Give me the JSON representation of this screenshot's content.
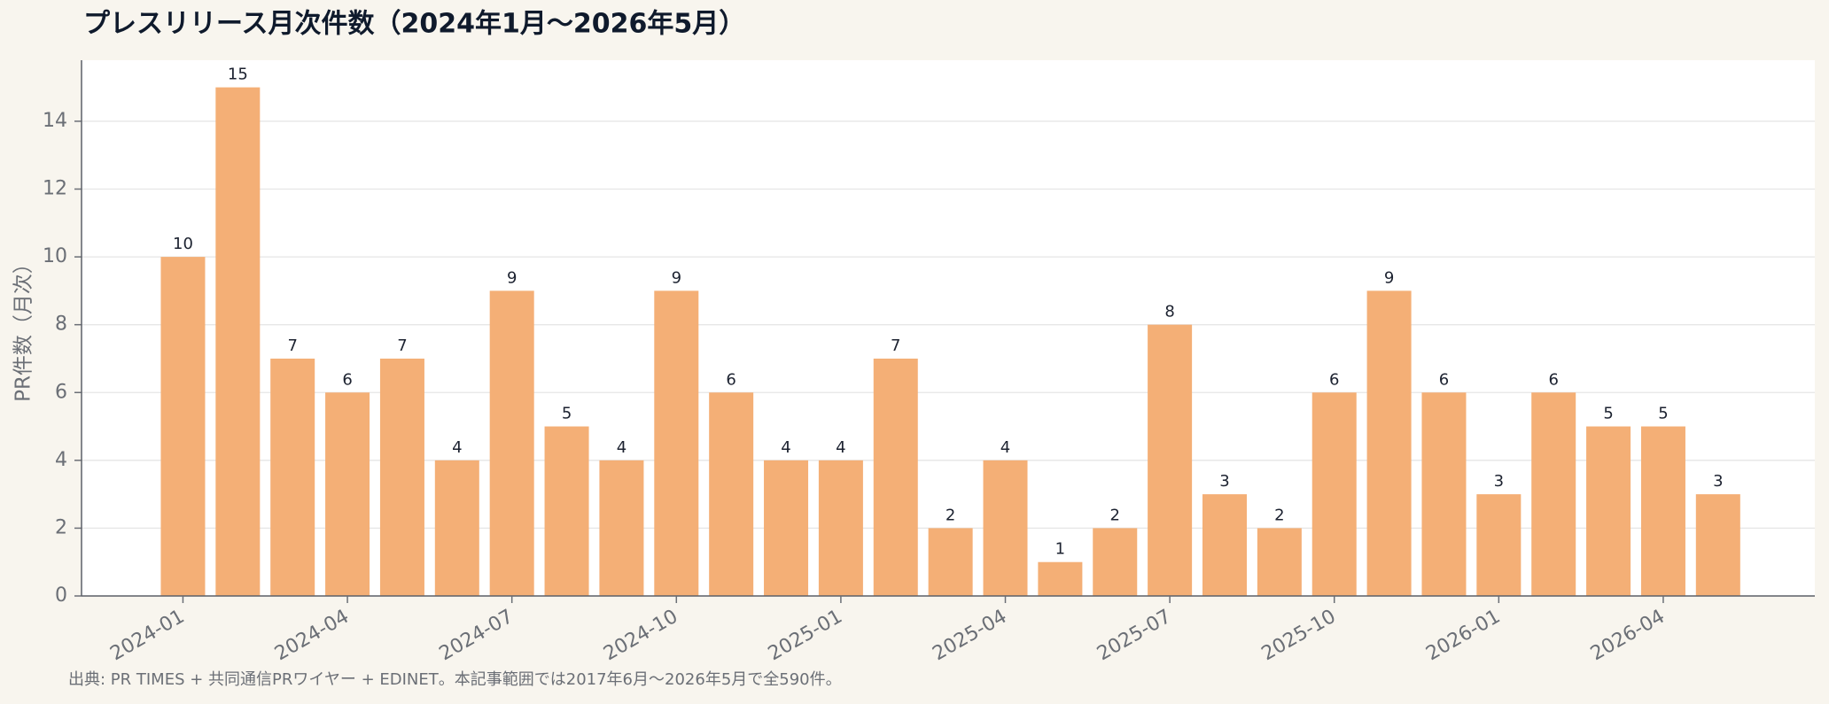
{
  "chart_data": {
    "type": "bar",
    "title": "プレスリリース月次件数（2024年1月〜2026年5月）",
    "y_label": "PR件数（月次）",
    "source": "出典: PR TIMES + 共同通信PRワイヤー + EDINET。本記事範囲では2017年6月〜2026年5月で全590件。",
    "categories": [
      "2024-01",
      null,
      null,
      "2024-04",
      null,
      null,
      "2024-07",
      null,
      null,
      "2024-10",
      null,
      null,
      "2025-01",
      null,
      null,
      "2025-04",
      null,
      null,
      "2025-07",
      null,
      null,
      "2025-10",
      null,
      null,
      "2026-01",
      null,
      null,
      "2026-04",
      null
    ],
    "values": [
      10,
      15,
      7,
      6,
      7,
      4,
      9,
      5,
      4,
      9,
      6,
      4,
      4,
      7,
      2,
      4,
      1,
      2,
      8,
      3,
      2,
      6,
      9,
      6,
      3,
      6,
      5,
      5,
      3
    ],
    "color": "#f4af76",
    "ylim": [
      0,
      15.8
    ],
    "yticks": [
      0,
      2,
      4,
      6,
      8,
      10,
      12,
      14
    ],
    "grid": true
  }
}
